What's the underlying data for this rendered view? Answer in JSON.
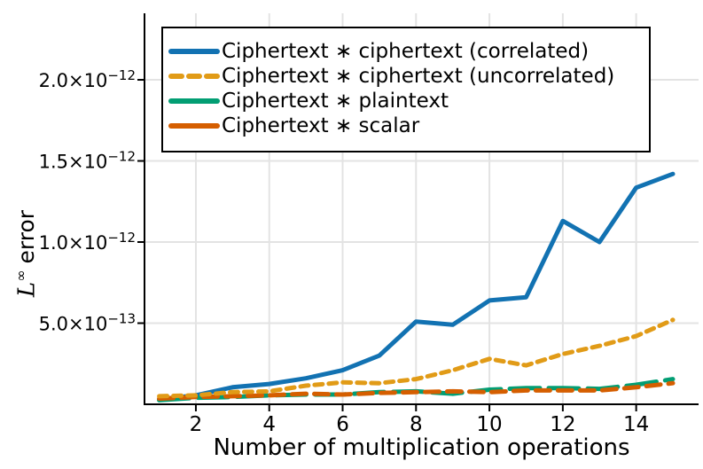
{
  "chart_data": {
    "type": "line",
    "title": "",
    "xlabel": "Number of multiplication operations",
    "ylabel_math": "L",
    "ylabel_sup": "∞",
    "ylabel_rest": "error",
    "x": [
      1,
      2,
      3,
      4,
      5,
      6,
      7,
      8,
      9,
      10,
      11,
      12,
      13,
      14,
      15
    ],
    "series": [
      {
        "key": "ciphertext-ciphertext-correlated",
        "name": "Ciphertext ∗ ciphertext (correlated)",
        "color": "#1272b2",
        "style": "solid",
        "dash": null,
        "values": [
          3e-14,
          5.5e-14,
          1.05e-13,
          1.25e-13,
          1.6e-13,
          2.1e-13,
          3e-13,
          5.1e-13,
          4.9e-13,
          6.4e-13,
          6.6e-13,
          1.13e-12,
          1e-12,
          1.335e-12,
          1.42e-12
        ]
      },
      {
        "key": "ciphertext-ciphertext-uncorrelated",
        "name": "Ciphertext ∗ ciphertext (uncorrelated)",
        "color": "#e19b17",
        "style": "dashed",
        "dash": "9 7",
        "values": [
          5e-14,
          5.5e-14,
          7.5e-14,
          8e-14,
          1.15e-13,
          1.35e-13,
          1.3e-13,
          1.55e-13,
          2.1e-13,
          2.8e-13,
          2.4e-13,
          3.1e-13,
          3.6e-13,
          4.2e-13,
          5.2e-13
        ]
      },
      {
        "key": "ciphertext-plaintext",
        "name": "Ciphertext ∗ plaintext",
        "color": "#029e73",
        "style": "solid",
        "dash": "34 10",
        "values": [
          2.5e-14,
          4e-14,
          4.5e-14,
          5.5e-14,
          6e-14,
          6e-14,
          7.5e-14,
          8e-14,
          6.5e-14,
          9e-14,
          1e-13,
          1e-13,
          9.5e-14,
          1.2e-13,
          1.55e-13
        ]
      },
      {
        "key": "ciphertext-scalar",
        "name": "Ciphertext ∗ scalar",
        "color": "#d55e00",
        "style": "solid",
        "dash": "16 9",
        "values": [
          3.5e-14,
          4.5e-14,
          5e-14,
          5.5e-14,
          6.5e-14,
          6e-14,
          7e-14,
          7.5e-14,
          8e-14,
          7.5e-14,
          8.5e-14,
          8.5e-14,
          8.5e-14,
          1.05e-13,
          1.3e-13
        ]
      }
    ],
    "xticks": [
      2,
      4,
      6,
      8,
      10,
      12,
      14
    ],
    "yticks": [
      {
        "v": 5e-13,
        "mantissa": "5.0×10",
        "exponent": "−13"
      },
      {
        "v": 1e-12,
        "mantissa": "1.0×10",
        "exponent": "−12"
      },
      {
        "v": 1.5e-12,
        "mantissa": "1.5×10",
        "exponent": "−12"
      },
      {
        "v": 2e-12,
        "mantissa": "2.0×10",
        "exponent": "−12"
      }
    ],
    "xlim": [
      0.6,
      15.7
    ],
    "ylim": [
      0,
      2.41e-12
    ],
    "grid": true,
    "grid_color": "#e3e3e3",
    "axis_color": "#000000",
    "background": "#ffffff",
    "legend_position": "top-left-inside"
  }
}
